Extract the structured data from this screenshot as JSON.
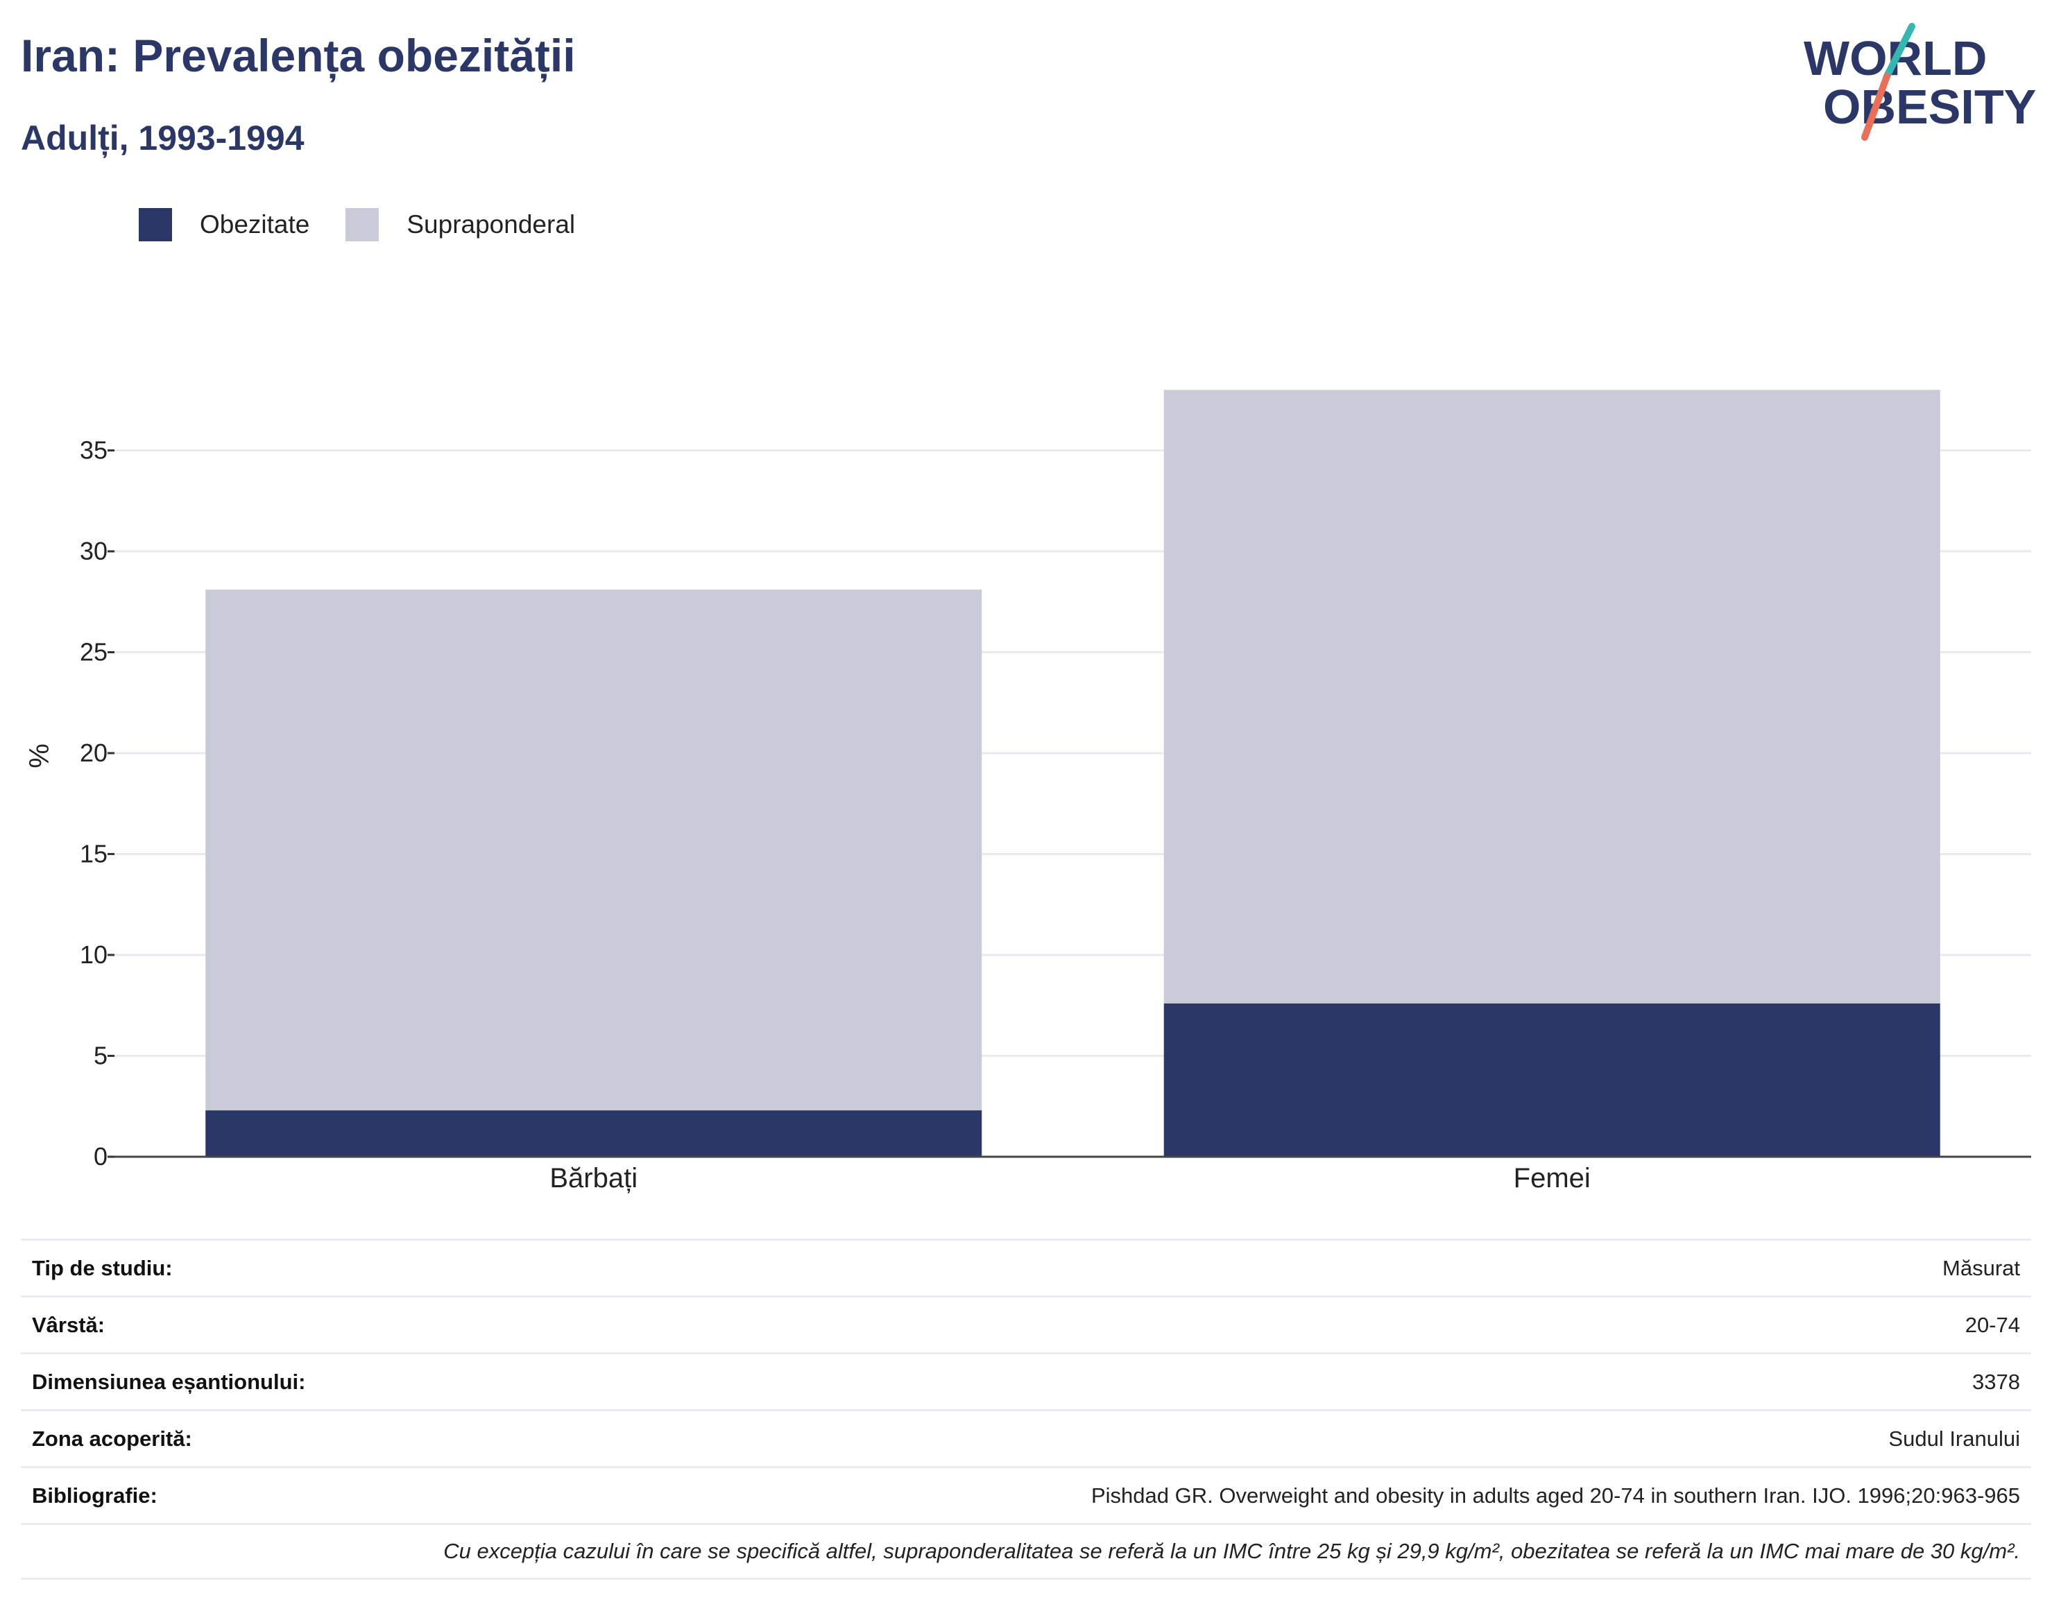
{
  "header": {
    "title": "Iran: Prevalența obezității",
    "subtitle": "Adulți, 1993-1994"
  },
  "logo": {
    "line1": "WORLD",
    "line2": "OBESITY",
    "colors": {
      "text": "#2b3766",
      "slash_top": "#36b6b0",
      "slash_bottom": "#e8705a"
    }
  },
  "chart_data": {
    "type": "bar",
    "stacked": true,
    "categories": [
      "Bărbați",
      "Femei"
    ],
    "series": [
      {
        "name": "Obezitate",
        "color": "#2b3766",
        "values": [
          2.3,
          7.6
        ]
      },
      {
        "name": "Supraponderal",
        "color": "#c9ccd8",
        "values": [
          25.8,
          30.4
        ]
      }
    ],
    "xlabel": "",
    "ylabel": "%",
    "ylim": [
      0,
      38
    ],
    "yticks": [
      0,
      5,
      10,
      15,
      20,
      25,
      30,
      35
    ],
    "grid": true,
    "legend_position": "top-left"
  },
  "info": {
    "rows": [
      {
        "label": "Tip de studiu:",
        "value": "Măsurat"
      },
      {
        "label": "Vârstă:",
        "value": "20-74"
      },
      {
        "label": "Dimensiunea eșantionului:",
        "value": "3378"
      },
      {
        "label": "Zona acoperită:",
        "value": "Sudul Iranului"
      },
      {
        "label": "Bibliografie:",
        "value": "Pishdad GR. Overweight and obesity in adults aged 20-74 in southern Iran. IJO. 1996;20:963-965"
      }
    ],
    "note": "Cu excepția cazului în care se specifică altfel, supraponderalitatea se referă la un IMC între 25 kg și 29,9 kg/m², obezitatea se referă la un IMC mai mare de 30 kg/m²."
  }
}
